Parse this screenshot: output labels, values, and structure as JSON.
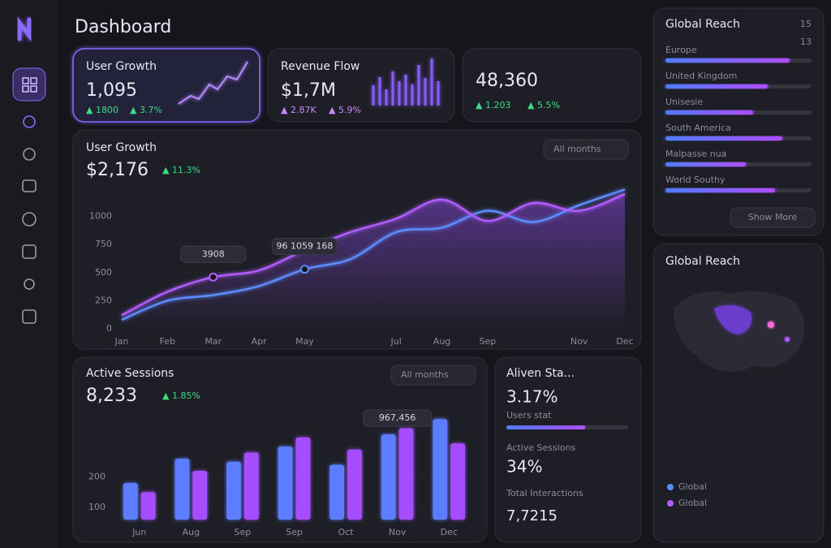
{
  "header": {
    "title": "Dashboard"
  },
  "user_growth_card": {
    "title": "User Growth",
    "value": "1,095",
    "change_1": "▲ 1800",
    "change_2": "▲ 3.7%"
  },
  "revenue_card": {
    "title": "Revenue Flow",
    "value": "$1,7M",
    "change_1": "▲ 2.87K",
    "change_2": "▲ 5.9%"
  },
  "top_card": {
    "value": "48,360",
    "change_1": "▲ 1.203",
    "change_2": "▲ 5.5%"
  },
  "region_list": {
    "title": "Global Reach",
    "counts": [
      "15",
      "13"
    ],
    "rows": [
      {
        "label": "Europe",
        "value": 85
      },
      {
        "label": "United Kingdom",
        "value": 70
      },
      {
        "label": "Unisesie",
        "value": 60
      },
      {
        "label": "South America",
        "value": 80
      },
      {
        "label": "Malpasse nua",
        "value": 55
      },
      {
        "label": "World Southy",
        "value": 75
      }
    ],
    "button": "Show More"
  },
  "main_chart": {
    "type": "line",
    "title": "User Growth",
    "value": "$2,176",
    "change": "▲ 11.3%",
    "dropdown": "All months",
    "categories": [
      "Jan",
      "Feb",
      "Mar",
      "Apr",
      "May",
      null,
      "Jul",
      "Aug",
      "Sep",
      null,
      "Nov",
      "Dec"
    ],
    "ylim": [
      0,
      1250
    ],
    "yticks": [
      0,
      250,
      500,
      750,
      1000
    ],
    "series": [
      {
        "name": "Blue",
        "color": "#5b8cff",
        "values": [
          80,
          250,
          300,
          380,
          530,
          620,
          860,
          900,
          1050,
          950,
          1100,
          1240
        ]
      },
      {
        "name": "Purple",
        "color": "#b15cff",
        "values": [
          120,
          330,
          460,
          520,
          700,
          860,
          980,
          1150,
          960,
          1120,
          1050,
          1200
        ]
      }
    ],
    "annotations": [
      "3908",
      "96 1059 168"
    ]
  },
  "sessions_chart": {
    "type": "bar",
    "title": "Active Sessions",
    "value": "8,233",
    "change": "▲ 1.85%",
    "dropdown": "All months",
    "categories": [
      "Jun",
      "Aug",
      "Sep",
      "Sep",
      "Oct",
      "Nov",
      "Dec"
    ],
    "ylim": [
      60,
      420
    ],
    "yticks": [
      100,
      200
    ],
    "series": [
      {
        "name": "Blue",
        "color": "#5b7dff",
        "values": [
          180,
          260,
          250,
          300,
          240,
          340,
          390
        ]
      },
      {
        "name": "Purple",
        "color": "#a64dff",
        "values": [
          150,
          220,
          280,
          330,
          290,
          360,
          310
        ]
      }
    ],
    "annotation": "967,456"
  },
  "stats_card": {
    "title": "Aliven Sta...",
    "value_1": "3.17%",
    "label_1": "Users stat",
    "progress": 65,
    "label_2": "Active Sessions",
    "value_2": "34%",
    "label_3": "Total Interactions",
    "value_3": "7,7215"
  },
  "reach_card": {
    "title": "Global Reach",
    "legend": [
      "Global",
      "Global"
    ]
  }
}
